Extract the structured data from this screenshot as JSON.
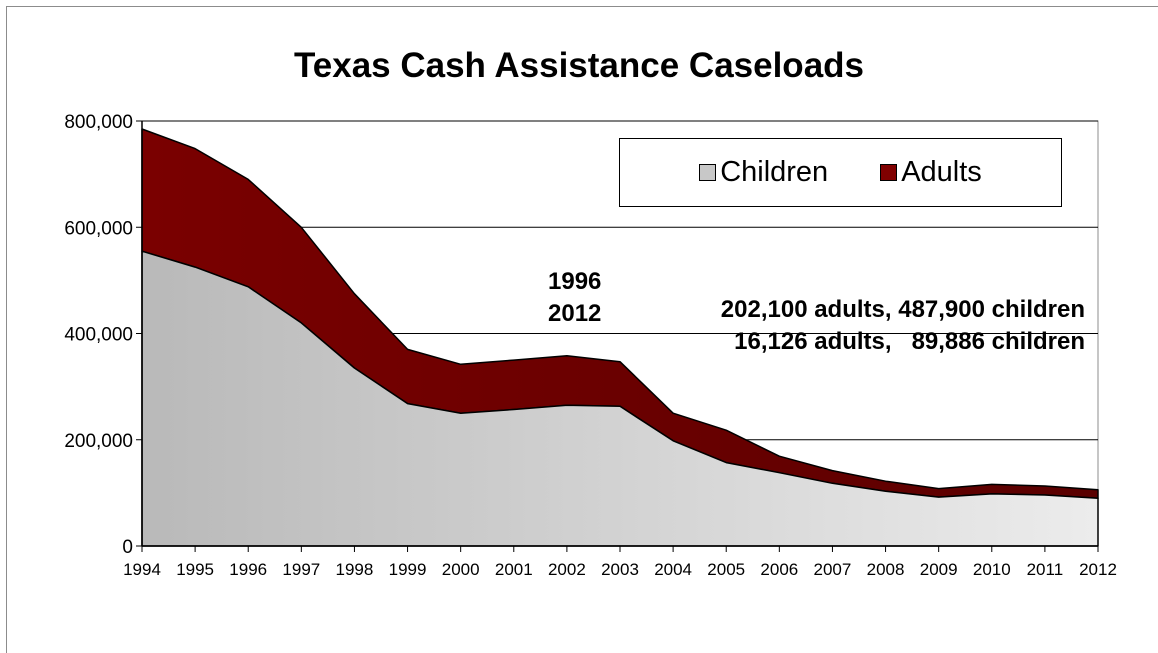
{
  "chart_data": {
    "type": "area",
    "stacked": true,
    "title": "Texas Cash Assistance Caseloads",
    "xlabel": "",
    "ylabel": "",
    "ylim": [
      0,
      800000
    ],
    "y_ticks": [
      "0",
      "200,000",
      "400,000",
      "600,000",
      "800,000"
    ],
    "y_tick_values": [
      0,
      200000,
      400000,
      600000,
      800000
    ],
    "grid": true,
    "legend_position": "top-right",
    "x": [
      "1994",
      "1995",
      "1996",
      "1997",
      "1998",
      "1999",
      "2000",
      "2001",
      "2002",
      "2003",
      "2004",
      "2005",
      "2006",
      "2007",
      "2008",
      "2009",
      "2010",
      "2011",
      "2012"
    ],
    "series": [
      {
        "name": "Children",
        "color": "#c8c8c8",
        "values": [
          555000,
          525000,
          487900,
          420000,
          335000,
          268000,
          250000,
          257000,
          265000,
          263000,
          198000,
          157000,
          138000,
          118000,
          103000,
          92000,
          98000,
          96000,
          89886
        ]
      },
      {
        "name": "Adults",
        "color": "#7a0000",
        "values": [
          230000,
          223000,
          202100,
          180000,
          140000,
          102000,
          92000,
          93000,
          93000,
          84000,
          52000,
          61000,
          31000,
          24000,
          19000,
          16000,
          18000,
          17000,
          16126
        ]
      }
    ],
    "annotations": [
      {
        "year": "1996",
        "text": "202,100 adults, 487,900 children"
      },
      {
        "year": "2012",
        "text": "16,126 adults,   89,886 children"
      }
    ]
  },
  "legend_swatch_colors": {
    "children": "#c8c8c8",
    "adults": "#800000"
  }
}
